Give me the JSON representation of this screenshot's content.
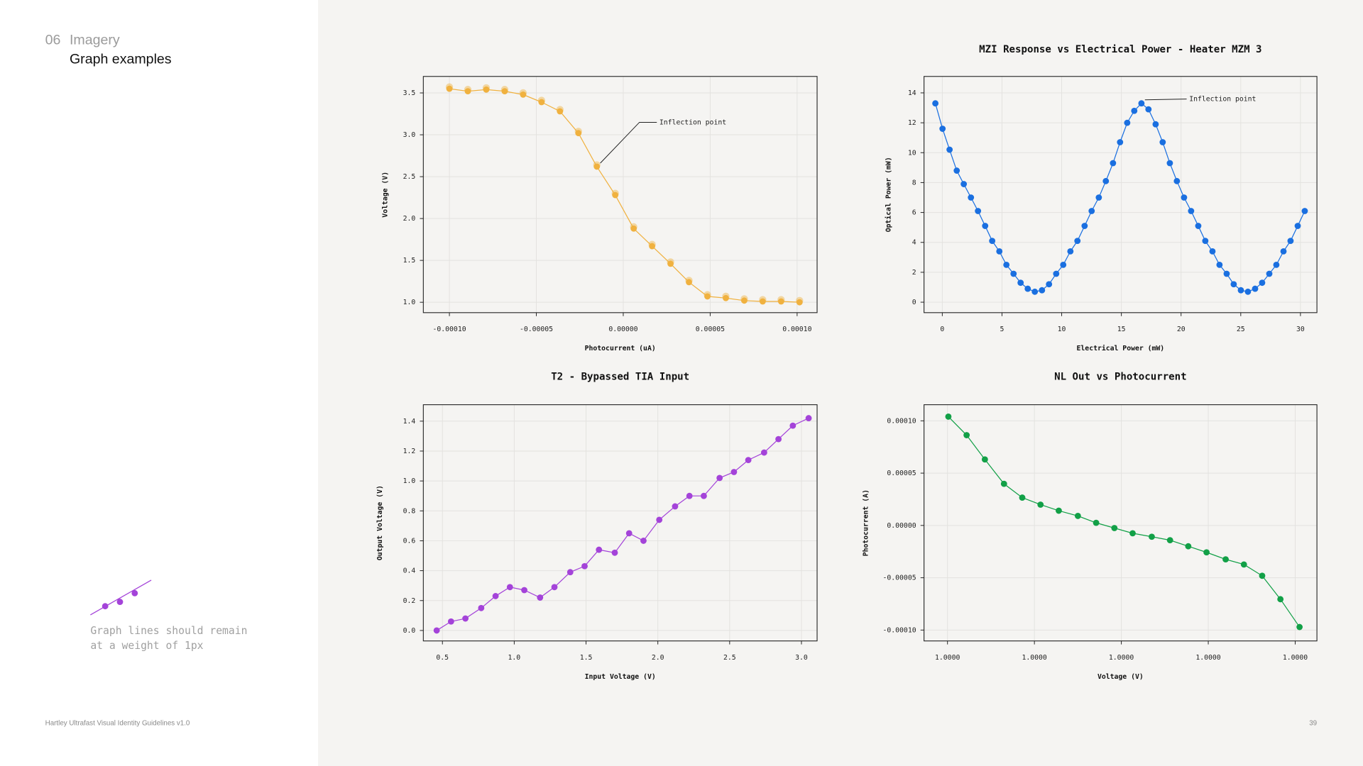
{
  "header": {
    "section": "06",
    "section_title": "Imagery",
    "title": "Graph examples"
  },
  "note": {
    "lines": [
      "Graph lines should remain",
      "at a weight of 1px"
    ]
  },
  "footer": {
    "text": "Hartley Ultrafast Visual Identity Guidelines v1.0",
    "page": "39"
  },
  "chart_data": [
    {
      "type": "line",
      "xlabel": "Photocurrent (uA)",
      "ylabel": "Voltage (V)",
      "color": "#f0b13f",
      "annotation": "Inflection point",
      "x": [
        -0.0001,
        -8.94e-05,
        -7.88e-05,
        -6.82e-05,
        -5.76e-05,
        -4.7e-05,
        -3.64e-05,
        -2.58e-05,
        -1.52e-05,
        -4.6e-06,
        6e-06,
        1.66e-05,
        2.72e-05,
        3.78e-05,
        4.84e-05,
        5.9e-05,
        6.96e-05,
        8.02e-05,
        9.08e-05,
        0.0001014
      ],
      "values": [
        3.55,
        3.52,
        3.54,
        3.52,
        3.48,
        3.39,
        3.28,
        3.02,
        2.62,
        2.28,
        1.88,
        1.67,
        1.46,
        1.24,
        1.07,
        1.05,
        1.02,
        1.01,
        1.01,
        1.0
      ],
      "xlim": [
        -0.000115,
        0.0001115
      ],
      "ylim": [
        0.876,
        3.697
      ],
      "xticks": [
        {
          "value": -0.0001,
          "label": "-0.00010"
        },
        {
          "value": -5e-05,
          "label": "-0.00005"
        },
        {
          "value": 0,
          "label": "0.00000"
        },
        {
          "value": 5e-05,
          "label": "0.00005"
        },
        {
          "value": 0.0001,
          "label": "0.00010"
        }
      ],
      "yticks": [
        {
          "value": 1,
          "label": "1.0"
        },
        1.5,
        {
          "value": 2,
          "label": "2.0"
        },
        2.5,
        {
          "value": 3,
          "label": "3.0"
        },
        3.5
      ],
      "grid": true
    },
    {
      "type": "line",
      "title": "MZI Response vs Electrical Power - Heater MZM 3",
      "xlabel": "Electrical Power (mW)",
      "ylabel": "Optical Power (mW)",
      "color": "#1a6fe0",
      "annotation": "Inflection point",
      "x": [
        -0.58,
        0.02,
        0.61,
        1.21,
        1.8,
        2.4,
        2.99,
        3.59,
        4.18,
        4.78,
        5.37,
        5.97,
        6.56,
        7.16,
        7.75,
        8.35,
        8.94,
        9.54,
        10.13,
        10.73,
        11.32,
        11.92,
        12.51,
        13.11,
        13.7,
        14.3,
        14.89,
        15.49,
        16.08,
        16.68,
        17.27,
        17.87,
        18.46,
        19.06,
        19.65,
        20.25,
        20.84,
        21.44,
        22.03,
        22.63,
        23.22,
        23.82,
        24.41,
        25.01,
        25.6,
        26.2,
        26.79,
        27.39,
        27.98,
        28.58,
        29.17,
        29.77,
        30.36
      ],
      "values": [
        13.3,
        11.6,
        10.2,
        8.8,
        7.9,
        7.0,
        6.1,
        5.1,
        4.1,
        3.4,
        2.5,
        1.9,
        1.3,
        0.9,
        0.7,
        0.8,
        1.2,
        1.9,
        2.5,
        3.4,
        4.1,
        5.1,
        6.1,
        7.0,
        8.1,
        9.3,
        10.7,
        12.0,
        12.8,
        13.3,
        12.9,
        11.9,
        10.7,
        9.3,
        8.1,
        7.0,
        6.1,
        5.1,
        4.1,
        3.4,
        2.5,
        1.9,
        1.2,
        0.8,
        0.7,
        0.9,
        1.3,
        1.9,
        2.5,
        3.4,
        4.1,
        5.1,
        6.1
      ],
      "xlim": [
        -1.53,
        31.38
      ],
      "ylim": [
        -0.7,
        15.1
      ],
      "xticks": [
        0,
        5,
        10,
        15,
        20,
        25,
        30
      ],
      "yticks": [
        0,
        2,
        4,
        6,
        8,
        10,
        12,
        14
      ],
      "grid": true
    },
    {
      "type": "line",
      "title": "T2 - Bypassed TIA Input",
      "xlabel": "Input Voltage (V)",
      "ylabel": "Output Voltage (V)",
      "color": "#a443d9",
      "x": [
        0.46,
        0.56,
        0.66,
        0.77,
        0.87,
        0.97,
        1.07,
        1.18,
        1.28,
        1.39,
        1.49,
        1.59,
        1.7,
        1.8,
        1.9,
        2.01,
        2.12,
        2.22,
        2.32,
        2.43,
        2.53,
        2.63,
        2.74,
        2.84,
        2.94,
        3.05
      ],
      "values": [
        0.0,
        0.06,
        0.08,
        0.15,
        0.23,
        0.29,
        0.27,
        0.22,
        0.29,
        0.39,
        0.43,
        0.54,
        0.52,
        0.65,
        0.6,
        0.74,
        0.83,
        0.9,
        0.9,
        1.02,
        1.06,
        1.14,
        1.19,
        1.28,
        1.37,
        1.42
      ],
      "xlim": [
        0.367,
        3.109
      ],
      "ylim": [
        -0.07,
        1.51
      ],
      "xticks": [
        0.5,
        {
          "value": 1,
          "label": "1.0"
        },
        1.5,
        {
          "value": 2,
          "label": "2.0"
        },
        2.5,
        {
          "value": 3,
          "label": "3.0"
        }
      ],
      "yticks": [
        {
          "value": 0,
          "label": "0.0"
        },
        0.2,
        0.4,
        0.6,
        0.8,
        {
          "value": 1,
          "label": "1.0"
        },
        1.2,
        1.4
      ],
      "grid": true
    },
    {
      "type": "line",
      "title": "NL Out vs Photocurrent",
      "xlabel": "Voltage (V)",
      "ylabel": "Photocurrent (A)",
      "color": "#12a047",
      "x": [
        0.9999801,
        0.9999822,
        0.9999843,
        0.9999865,
        0.9999886,
        0.9999907,
        0.9999928,
        0.999995,
        0.9999971,
        0.9999992,
        1.0000013,
        1.0000035,
        1.0000056,
        1.0000077,
        1.0000098,
        1.000012,
        1.0000141,
        1.0000162,
        1.0000183,
        1.0000205
      ],
      "values": [
        0.000104,
        8.63e-05,
        6.31e-05,
        3.98e-05,
        2.66e-05,
        1.99e-05,
        1.41e-05,
        9.1e-06,
        2.5e-06,
        -2.5e-06,
        -7.5e-06,
        -1.08e-05,
        -1.41e-05,
        -1.99e-05,
        -2.57e-05,
        -3.24e-05,
        -3.73e-05,
        -4.81e-05,
        -7.05e-05,
        -9.71e-05
      ],
      "xlim": [
        0.9999773,
        1.0000225
      ],
      "ylim": [
        -0.0001104,
        0.0001154
      ],
      "xticks": [
        {
          "value": 0.99998,
          "label": "1.0000"
        },
        {
          "value": 0.99999,
          "label": "1.0000"
        },
        {
          "value": 1,
          "label": "1.0000"
        },
        {
          "value": 1.00001,
          "label": "1.0000"
        },
        {
          "value": 1.00002,
          "label": "1.0000"
        }
      ],
      "yticks": [
        {
          "value": -0.0001,
          "label": "-0.00010"
        },
        {
          "value": -5e-05,
          "label": "-0.00005"
        },
        {
          "value": 0,
          "label": "0.00000"
        },
        {
          "value": 5e-05,
          "label": "0.00005"
        },
        {
          "value": 0.0001,
          "label": "0.00010"
        }
      ],
      "grid": true
    }
  ]
}
